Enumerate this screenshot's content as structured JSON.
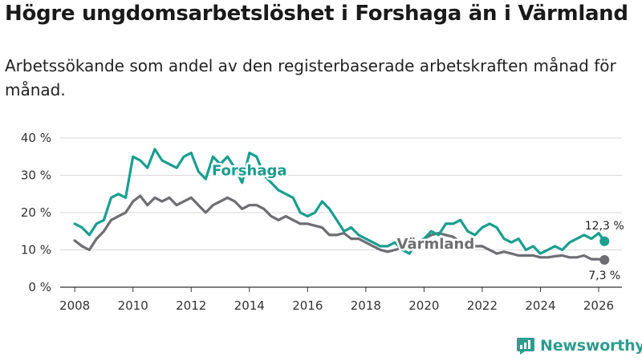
{
  "title": "Högre ungdomsarbetslöshet i Forshaga än i Värmland",
  "subtitle": "Arbetssökande som andel av den registerbaserade arbetskraften månad för månad.",
  "brand": "Newsworthy",
  "colors": {
    "forshaga": "#1a9e8f",
    "varmland": "#6e6e72",
    "grid": "#d8d8d8",
    "axis": "#333333"
  },
  "chart_data": {
    "type": "line",
    "title": "Högre ungdomsarbetslöshet i Forshaga än i Värmland",
    "xlabel": "",
    "ylabel": "",
    "xlim": [
      2007.5,
      2026.8
    ],
    "ylim": [
      0,
      40
    ],
    "x_ticks": [
      2008,
      2010,
      2012,
      2014,
      2016,
      2018,
      2020,
      2022,
      2024,
      2026
    ],
    "x_tick_labels": [
      "2008",
      "2010",
      "2012",
      "2014",
      "2016",
      "2018",
      "2020",
      "2022",
      "2024",
      "2026"
    ],
    "y_ticks": [
      0,
      10,
      20,
      30,
      40
    ],
    "y_tick_labels": [
      "0 %",
      "10 %",
      "20 %",
      "30 %",
      "40 %"
    ],
    "grid": true,
    "series": [
      {
        "name": "Forshaga",
        "color": "#1a9e8f",
        "end_label": "12,3 %",
        "x": [
          2008.0,
          2008.25,
          2008.5,
          2008.75,
          2009.0,
          2009.25,
          2009.5,
          2009.75,
          2010.0,
          2010.25,
          2010.5,
          2010.75,
          2011.0,
          2011.25,
          2011.5,
          2011.75,
          2012.0,
          2012.25,
          2012.5,
          2012.75,
          2013.0,
          2013.25,
          2013.5,
          2013.75,
          2014.0,
          2014.25,
          2014.5,
          2014.75,
          2015.0,
          2015.25,
          2015.5,
          2015.75,
          2016.0,
          2016.25,
          2016.5,
          2016.75,
          2017.0,
          2017.25,
          2017.5,
          2017.75,
          2018.0,
          2018.25,
          2018.5,
          2018.75,
          2019.0,
          2019.25,
          2019.5,
          2019.75,
          2020.0,
          2020.25,
          2020.5,
          2020.75,
          2021.0,
          2021.25,
          2021.5,
          2021.75,
          2022.0,
          2022.25,
          2022.5,
          2022.75,
          2023.0,
          2023.25,
          2023.5,
          2023.75,
          2024.0,
          2024.25,
          2024.5,
          2024.75,
          2025.0,
          2025.25,
          2025.5,
          2025.75,
          2026.0,
          2026.2
        ],
        "y": [
          17,
          16,
          14,
          17,
          18,
          24,
          25,
          24,
          35,
          34,
          32,
          37,
          34,
          33,
          32,
          35,
          36,
          31,
          29,
          35,
          33,
          35,
          32,
          28,
          36,
          35,
          30,
          28,
          26,
          25,
          24,
          20,
          19,
          20,
          23,
          21,
          18,
          15,
          16,
          14,
          13,
          12,
          11,
          11,
          12,
          10,
          9,
          12,
          13,
          15,
          14,
          17,
          17,
          18,
          15,
          14,
          16,
          17,
          16,
          13,
          12,
          13,
          10,
          11,
          9,
          10,
          11,
          10,
          12,
          13,
          14,
          13,
          14.5,
          12.3
        ]
      },
      {
        "name": "Värmland",
        "color": "#6e6e72",
        "end_label": "7,3 %",
        "x": [
          2008.0,
          2008.25,
          2008.5,
          2008.75,
          2009.0,
          2009.25,
          2009.5,
          2009.75,
          2010.0,
          2010.25,
          2010.5,
          2010.75,
          2011.0,
          2011.25,
          2011.5,
          2011.75,
          2012.0,
          2012.25,
          2012.5,
          2012.75,
          2013.0,
          2013.25,
          2013.5,
          2013.75,
          2014.0,
          2014.25,
          2014.5,
          2014.75,
          2015.0,
          2015.25,
          2015.5,
          2015.75,
          2016.0,
          2016.25,
          2016.5,
          2016.75,
          2017.0,
          2017.25,
          2017.5,
          2017.75,
          2018.0,
          2018.25,
          2018.5,
          2018.75,
          2019.0,
          2019.25,
          2019.5,
          2019.75,
          2020.0,
          2020.25,
          2020.5,
          2020.75,
          2021.0,
          2021.25,
          2021.5,
          2021.75,
          2022.0,
          2022.25,
          2022.5,
          2022.75,
          2023.0,
          2023.25,
          2023.5,
          2023.75,
          2024.0,
          2024.25,
          2024.5,
          2024.75,
          2025.0,
          2025.25,
          2025.5,
          2025.75,
          2026.0,
          2026.2
        ],
        "y": [
          12.5,
          11,
          10,
          13,
          15,
          18,
          19,
          20,
          23,
          24.5,
          22,
          24,
          23,
          24,
          22,
          23,
          24,
          22,
          20,
          22,
          23,
          24,
          23,
          21,
          22,
          22,
          21,
          19,
          18,
          19,
          18,
          17,
          17,
          16.5,
          16,
          14,
          14,
          14.5,
          13,
          13,
          12,
          11,
          10,
          9.5,
          10,
          10.5,
          11,
          12,
          13,
          14,
          14.5,
          14,
          13.5,
          12,
          11,
          11,
          11,
          10,
          9,
          9.5,
          9,
          8.5,
          8.5,
          8.5,
          8,
          8,
          8.3,
          8.5,
          8,
          8,
          8.5,
          7.5,
          7.5,
          7.3
        ]
      }
    ]
  }
}
